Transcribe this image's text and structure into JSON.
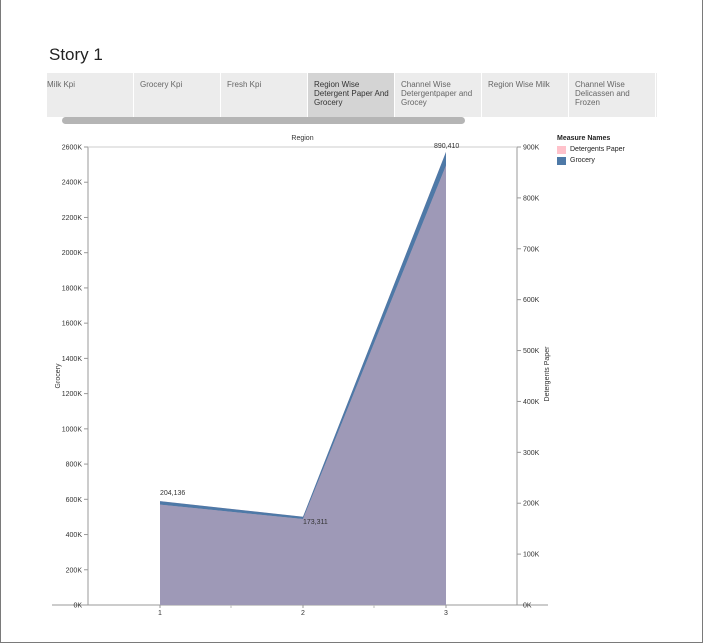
{
  "story": {
    "title": "Story 1",
    "tabs": [
      {
        "label": "Milk Kpi",
        "active": false
      },
      {
        "label": "Grocery Kpi",
        "active": false
      },
      {
        "label": "Fresh Kpi",
        "active": false
      },
      {
        "label": "Region Wise Detergent Paper And Grocery",
        "active": true
      },
      {
        "label": "Channel Wise Detergentpaper and Grocey",
        "active": false
      },
      {
        "label": "Region Wise Milk",
        "active": false
      },
      {
        "label": "Channel Wise Delicassen and Frozen",
        "active": false
      }
    ]
  },
  "legend": {
    "title": "Measure Names",
    "items": [
      {
        "label": "Detergents Paper",
        "color": "#ffc2cb"
      },
      {
        "label": "Grocery",
        "color": "#4e79a7"
      }
    ]
  },
  "chart_data": {
    "type": "area",
    "title": "Region",
    "xlabel": "",
    "categories": [
      "1",
      "2",
      "3"
    ],
    "y_left": {
      "label": "Grocery",
      "ticks": [
        "0K",
        "200K",
        "400K",
        "600K",
        "800K",
        "1000K",
        "1200K",
        "1400K",
        "1600K",
        "1800K",
        "2000K",
        "2200K",
        "2400K",
        "2600K"
      ],
      "ylim": [
        0,
        2600000
      ]
    },
    "y_right": {
      "label": "Detergents Paper",
      "ticks": [
        "0K",
        "100K",
        "200K",
        "300K",
        "400K",
        "500K",
        "600K",
        "700K",
        "800K",
        "900K"
      ],
      "ylim": [
        0,
        900000
      ]
    },
    "series": [
      {
        "name": "Detergents Paper",
        "axis": "right",
        "values": [
          204136,
          173311,
          890410
        ],
        "color": "#ffc2cb"
      },
      {
        "name": "Grocery",
        "axis": "left",
        "values": [
          570000,
          488000,
          2495000
        ],
        "color": "#4e79a7"
      }
    ],
    "data_labels": [
      {
        "series": "Detergents Paper",
        "index": 0,
        "text": "204,136"
      },
      {
        "series": "Detergents Paper",
        "index": 1,
        "text": "173,311"
      },
      {
        "series": "Detergents Paper",
        "index": 2,
        "text": "890,410"
      }
    ],
    "grid": false,
    "legend_position": "top-right"
  }
}
